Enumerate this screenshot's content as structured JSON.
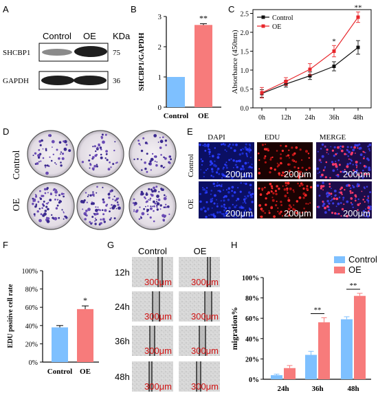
{
  "panel_letters": [
    "A",
    "B",
    "C",
    "D",
    "E",
    "F",
    "G",
    "H"
  ],
  "panel_a": {
    "headers": [
      "Control",
      "OE",
      "KDa"
    ],
    "rows": [
      {
        "label": "SHCBP1",
        "kda": "75"
      },
      {
        "label": "GAPDH",
        "kda": "36"
      }
    ]
  },
  "panel_d": {
    "rows": [
      "Control",
      "OE"
    ]
  },
  "panel_e": {
    "columns": [
      "DAPI",
      "EDU",
      "MERGE"
    ],
    "rows": [
      "Control",
      "OE"
    ],
    "scale_label": "200μm",
    "colors": {
      "dapi": "#1a2ccc",
      "edu": "#b01212",
      "merge": "#3a1878"
    }
  },
  "panel_g": {
    "columns": [
      "Control",
      "OE"
    ],
    "rows": [
      "12h",
      "24h",
      "36h",
      "48h"
    ],
    "scale_label": "300μm"
  },
  "chart_data": [
    {
      "panel": "B",
      "type": "bar",
      "categories": [
        "Control",
        "OE"
      ],
      "values": [
        1.0,
        2.72
      ],
      "errors": [
        0.0,
        0.04
      ],
      "colors": [
        "#7ec0ff",
        "#f77b7b"
      ],
      "ylabel": "SHCBP1/GAPDH",
      "ylim": [
        0,
        3
      ],
      "yticks": [
        0,
        1,
        2,
        3
      ],
      "significance": [
        {
          "category": "OE",
          "label": "**"
        }
      ]
    },
    {
      "panel": "C",
      "type": "line",
      "x": [
        "0h",
        "12h",
        "24h",
        "36h",
        "48h"
      ],
      "ylabel": "Absorbance (450nm)",
      "ylim": [
        0.0,
        2.6
      ],
      "yticks": [
        0.0,
        0.5,
        1.0,
        1.5,
        2.0,
        2.5
      ],
      "legend_position": "top-left",
      "series": [
        {
          "name": "Control",
          "values": [
            0.38,
            0.63,
            0.85,
            1.1,
            1.6
          ],
          "errors": [
            0.1,
            0.08,
            0.1,
            0.12,
            0.18
          ],
          "color": "#111111"
        },
        {
          "name": "OE",
          "values": [
            0.4,
            0.7,
            1.02,
            1.5,
            2.4
          ],
          "errors": [
            0.14,
            0.1,
            0.15,
            0.15,
            0.14
          ],
          "color": "#e8262b"
        }
      ],
      "significance": [
        {
          "x": "36h",
          "label": "*"
        },
        {
          "x": "48h",
          "label": "**"
        }
      ]
    },
    {
      "panel": "F",
      "type": "bar",
      "categories": [
        "Control",
        "OE"
      ],
      "values": [
        38,
        58
      ],
      "errors": [
        2,
        3.5
      ],
      "colors": [
        "#7ec0ff",
        "#f77b7b"
      ],
      "ylabel": "EDU positive cell rate",
      "ylim": [
        0,
        100
      ],
      "yticks": [
        "0%",
        "20%",
        "40%",
        "60%",
        "80%",
        "100%"
      ],
      "significance": [
        {
          "category": "OE",
          "label": "*"
        }
      ]
    },
    {
      "panel": "H",
      "type": "bar",
      "categories": [
        "24h",
        "36h",
        "48h"
      ],
      "ylabel": "migration%",
      "ylim": [
        0,
        100
      ],
      "yticks": [
        "0%",
        "20%",
        "40%",
        "60%",
        "80%",
        "100%"
      ],
      "legend_position": "top-right",
      "series": [
        {
          "name": "Control",
          "values": [
            4,
            24,
            59
          ],
          "errors": [
            1,
            3.5,
            2.5
          ],
          "color": "#7ec0ff"
        },
        {
          "name": "OE",
          "values": [
            11,
            56,
            82
          ],
          "errors": [
            2.5,
            4.5,
            2.5
          ],
          "color": "#f77b7b"
        }
      ],
      "significance": [
        {
          "category": "36h",
          "label": "**"
        },
        {
          "category": "48h",
          "label": "**"
        }
      ]
    }
  ]
}
